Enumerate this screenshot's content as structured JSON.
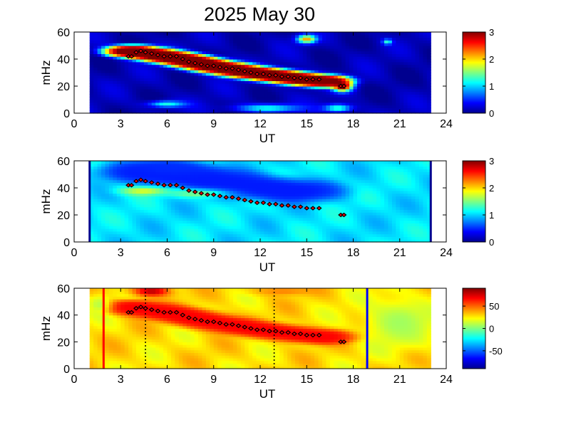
{
  "title": "2025 May 30",
  "colormap": [
    "#00008f",
    "#0000ff",
    "#0080ff",
    "#00ffff",
    "#80ff80",
    "#ffff00",
    "#ff8000",
    "#ff0000",
    "#800000"
  ],
  "chart_data": [
    {
      "type": "heatmap",
      "title": "",
      "xlabel": "UT",
      "ylabel": "mHz",
      "xlim": [
        0,
        24
      ],
      "ylim": [
        0,
        60
      ],
      "xticks": [
        "0",
        "3",
        "6",
        "9",
        "12",
        "15",
        "18",
        "21",
        "24"
      ],
      "yticks": [
        "0",
        "20",
        "40",
        "60"
      ],
      "colorbar": {
        "range": [
          0,
          3
        ],
        "ticks": [
          "0",
          "1",
          "2",
          "3"
        ],
        "tick_values": [
          0,
          1,
          2,
          3
        ]
      },
      "data_range_ut": [
        1,
        23
      ],
      "background_level": 0.12,
      "features": [
        {
          "kind": "ridge",
          "points": [
            [
              3.8,
              46
            ],
            [
              5,
              44
            ],
            [
              7,
              40
            ],
            [
              9,
              35
            ],
            [
              11,
              31
            ],
            [
              13,
              28
            ],
            [
              15,
              25
            ],
            [
              16,
              24
            ]
          ],
          "width_mhz": 5,
          "level": 3.2
        },
        {
          "kind": "blob",
          "center": [
            17.3,
            20
          ],
          "radius": [
            0.6,
            3.5
          ],
          "level": 3.2
        },
        {
          "kind": "blob",
          "center": [
            15,
            55
          ],
          "radius": [
            0.6,
            3
          ],
          "level": 2.2
        },
        {
          "kind": "blob",
          "center": [
            20.2,
            53
          ],
          "radius": [
            0.3,
            2
          ],
          "level": 1.3
        },
        {
          "kind": "blob",
          "center": [
            6.0,
            7
          ],
          "radius": [
            1.2,
            2.5
          ],
          "level": 1.2
        },
        {
          "kind": "blob",
          "center": [
            12.5,
            4
          ],
          "radius": [
            2.0,
            3
          ],
          "level": 1.2
        },
        {
          "kind": "blob",
          "center": [
            17.0,
            4
          ],
          "radius": [
            0.9,
            3
          ],
          "level": 1.3
        }
      ],
      "markers_ut": [],
      "ridge_points": [
        [
          3.5,
          42
        ],
        [
          3.7,
          42
        ],
        [
          4.0,
          45
        ],
        [
          4.3,
          46
        ],
        [
          4.6,
          45
        ],
        [
          5.0,
          44
        ],
        [
          5.4,
          43
        ],
        [
          5.8,
          42
        ],
        [
          6.2,
          42
        ],
        [
          6.6,
          42
        ],
        [
          7.0,
          40
        ],
        [
          7.4,
          38
        ],
        [
          7.8,
          37
        ],
        [
          8.2,
          36
        ],
        [
          8.6,
          35
        ],
        [
          9.0,
          35
        ],
        [
          9.4,
          34
        ],
        [
          9.8,
          33
        ],
        [
          10.2,
          33
        ],
        [
          10.6,
          32
        ],
        [
          11.0,
          31
        ],
        [
          11.4,
          30
        ],
        [
          11.8,
          29
        ],
        [
          12.2,
          29
        ],
        [
          12.6,
          28
        ],
        [
          13.0,
          28
        ],
        [
          13.4,
          27
        ],
        [
          13.8,
          27
        ],
        [
          14.2,
          26
        ],
        [
          14.6,
          26
        ],
        [
          15.0,
          25
        ],
        [
          15.4,
          25
        ],
        [
          15.8,
          25
        ],
        [
          17.2,
          20
        ],
        [
          17.4,
          20
        ]
      ]
    },
    {
      "type": "heatmap",
      "title": "",
      "xlabel": "UT",
      "ylabel": "mHz",
      "xlim": [
        0,
        24
      ],
      "ylim": [
        0,
        60
      ],
      "xticks": [
        "0",
        "3",
        "6",
        "9",
        "12",
        "15",
        "18",
        "21",
        "24"
      ],
      "yticks": [
        "0",
        "20",
        "40",
        "60"
      ],
      "colorbar": {
        "range": [
          0,
          3
        ],
        "ticks": [
          "0",
          "1",
          "2",
          "3"
        ],
        "tick_values": [
          0,
          1,
          2,
          3
        ]
      },
      "data_range_ut": [
        1,
        23
      ],
      "background_level": 1.05,
      "features": [
        {
          "kind": "ridge",
          "points": [
            [
              5,
              52
            ],
            [
              8,
              48
            ],
            [
              11,
              42
            ],
            [
              14,
              38
            ]
          ],
          "width_mhz": 9,
          "level": 0.45
        },
        {
          "kind": "blob",
          "center": [
            6.5,
            55
          ],
          "radius": [
            2.5,
            5
          ],
          "level": 0.5
        },
        {
          "kind": "blob",
          "center": [
            4.5,
            38
          ],
          "radius": [
            1.5,
            3
          ],
          "level": 1.8
        },
        {
          "kind": "blob",
          "center": [
            8,
            36
          ],
          "radius": [
            1.8,
            3
          ],
          "level": 1.5
        }
      ],
      "markers_ut": [
        {
          "ut": 1.0,
          "color": "#00008f",
          "style": "solid"
        },
        {
          "ut": 23.0,
          "color": "#00008f",
          "style": "solid"
        }
      ],
      "ridge_points": [
        [
          3.5,
          42
        ],
        [
          3.7,
          42
        ],
        [
          4.0,
          45
        ],
        [
          4.3,
          46
        ],
        [
          4.6,
          45
        ],
        [
          5.0,
          44
        ],
        [
          5.4,
          43
        ],
        [
          5.8,
          42
        ],
        [
          6.2,
          42
        ],
        [
          6.6,
          42
        ],
        [
          7.0,
          40
        ],
        [
          7.4,
          38
        ],
        [
          7.8,
          37
        ],
        [
          8.2,
          36
        ],
        [
          8.6,
          35
        ],
        [
          9.0,
          35
        ],
        [
          9.4,
          34
        ],
        [
          9.8,
          33
        ],
        [
          10.2,
          33
        ],
        [
          10.6,
          32
        ],
        [
          11.0,
          31
        ],
        [
          11.4,
          30
        ],
        [
          11.8,
          29
        ],
        [
          12.2,
          29
        ],
        [
          12.6,
          28
        ],
        [
          13.0,
          28
        ],
        [
          13.4,
          27
        ],
        [
          13.8,
          27
        ],
        [
          14.2,
          26
        ],
        [
          14.6,
          26
        ],
        [
          15.0,
          25
        ],
        [
          15.4,
          25
        ],
        [
          15.8,
          25
        ],
        [
          17.2,
          20
        ],
        [
          17.4,
          20
        ]
      ]
    },
    {
      "type": "heatmap",
      "title": "",
      "xlabel": "UT",
      "ylabel": "mHz",
      "xlim": [
        0,
        24
      ],
      "ylim": [
        0,
        60
      ],
      "xticks": [
        "0",
        "3",
        "6",
        "9",
        "12",
        "15",
        "18",
        "21",
        "24"
      ],
      "yticks": [
        "0",
        "20",
        "40",
        "60"
      ],
      "colorbar": {
        "range": [
          -90,
          90
        ],
        "ticks": [
          "50",
          "0",
          "-50"
        ],
        "tick_values": [
          50,
          0,
          -50
        ]
      },
      "data_range_ut": [
        1,
        23
      ],
      "background_level": 28,
      "features": [
        {
          "kind": "ridge",
          "points": [
            [
              3.8,
              46
            ],
            [
              5,
              44
            ],
            [
              7,
              40
            ],
            [
              9,
              35
            ],
            [
              11,
              31
            ],
            [
              13,
              28
            ],
            [
              15,
              25
            ],
            [
              16,
              24
            ]
          ],
          "width_mhz": 6,
          "level": 68
        },
        {
          "kind": "blob",
          "center": [
            5.0,
            58
          ],
          "radius": [
            1.2,
            4
          ],
          "level": 80
        },
        {
          "kind": "blob",
          "center": [
            13.5,
            58
          ],
          "radius": [
            2.0,
            3
          ],
          "level": 45
        },
        {
          "kind": "blob",
          "center": [
            21,
            35
          ],
          "radius": [
            2.2,
            18
          ],
          "level": 6
        },
        {
          "kind": "blob",
          "center": [
            1.6,
            48
          ],
          "radius": [
            0.8,
            8
          ],
          "level": 10
        }
      ],
      "markers_ut": [
        {
          "ut": 1.9,
          "color": "#ff0000",
          "style": "solid"
        },
        {
          "ut": 4.6,
          "color": "#000000",
          "style": "dotted"
        },
        {
          "ut": 12.9,
          "color": "#000000",
          "style": "dotted"
        },
        {
          "ut": 18.9,
          "color": "#0000ff",
          "style": "solid"
        }
      ],
      "ridge_points": [
        [
          3.5,
          42
        ],
        [
          3.7,
          42
        ],
        [
          4.0,
          45
        ],
        [
          4.3,
          46
        ],
        [
          4.6,
          45
        ],
        [
          5.0,
          44
        ],
        [
          5.4,
          43
        ],
        [
          5.8,
          42
        ],
        [
          6.2,
          42
        ],
        [
          6.6,
          42
        ],
        [
          7.0,
          40
        ],
        [
          7.4,
          38
        ],
        [
          7.8,
          37
        ],
        [
          8.2,
          36
        ],
        [
          8.6,
          35
        ],
        [
          9.0,
          35
        ],
        [
          9.4,
          34
        ],
        [
          9.8,
          33
        ],
        [
          10.2,
          33
        ],
        [
          10.6,
          32
        ],
        [
          11.0,
          31
        ],
        [
          11.4,
          30
        ],
        [
          11.8,
          29
        ],
        [
          12.2,
          29
        ],
        [
          12.6,
          28
        ],
        [
          13.0,
          28
        ],
        [
          13.4,
          27
        ],
        [
          13.8,
          27
        ],
        [
          14.2,
          26
        ],
        [
          14.6,
          26
        ],
        [
          15.0,
          25
        ],
        [
          15.4,
          25
        ],
        [
          15.8,
          25
        ],
        [
          17.2,
          20
        ],
        [
          17.4,
          20
        ]
      ]
    }
  ]
}
